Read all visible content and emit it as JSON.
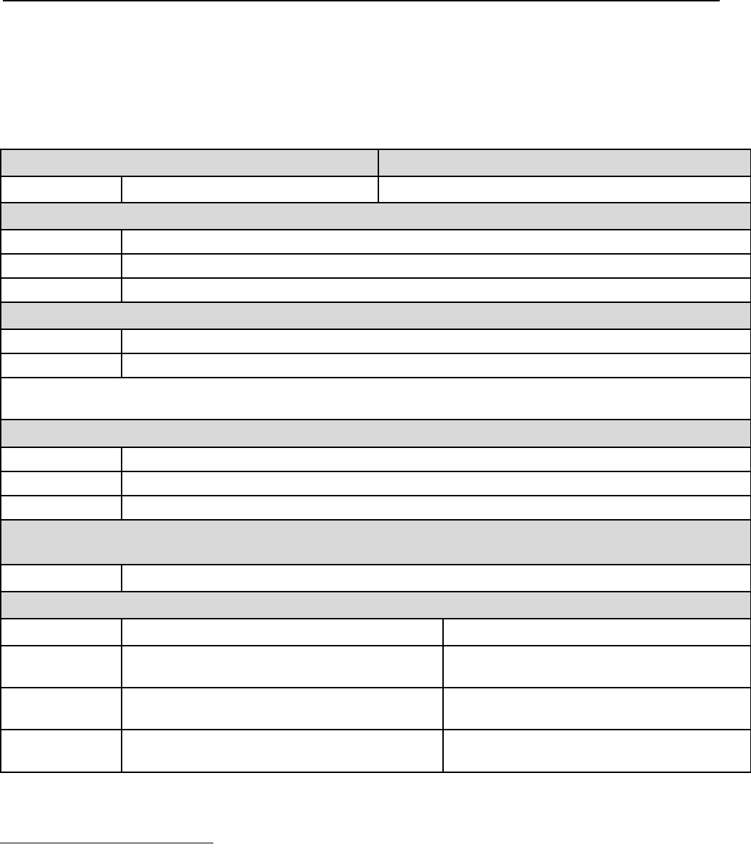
{
  "colors": {
    "header_fill": "#d9d9d9",
    "rule": "#000000"
  }
}
